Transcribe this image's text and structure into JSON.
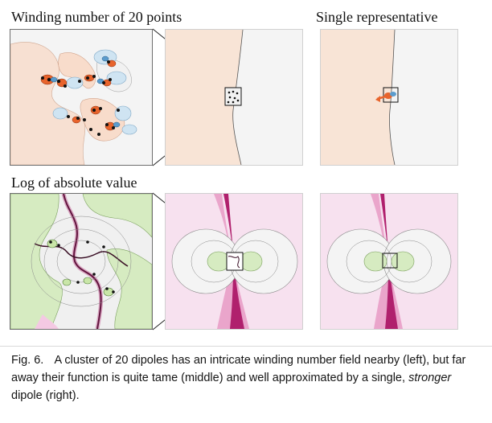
{
  "headings": {
    "winding": "Winding number of 20 points",
    "single": "Single representative",
    "log": "Log of absolute value"
  },
  "caption": {
    "figure_label": "Fig. 6.",
    "text_before_emphasis": "A cluster of 20 dipoles has an intricate winding number field nearby (left), but far away their function is quite tame (middle) and well approximated by a single,",
    "emphasis": "stronger",
    "text_after_emphasis": "dipole (right)."
  },
  "colors": {
    "winding_positive": "#f6d9c7",
    "winding_negative": "#cfe4f2",
    "winding_strong_positive": "#e8642c",
    "log_green": "#d6ebc1",
    "log_pink": "#f4c9e3",
    "log_magenta": "#b0206d",
    "background_gray": "#f4f4f4"
  }
}
